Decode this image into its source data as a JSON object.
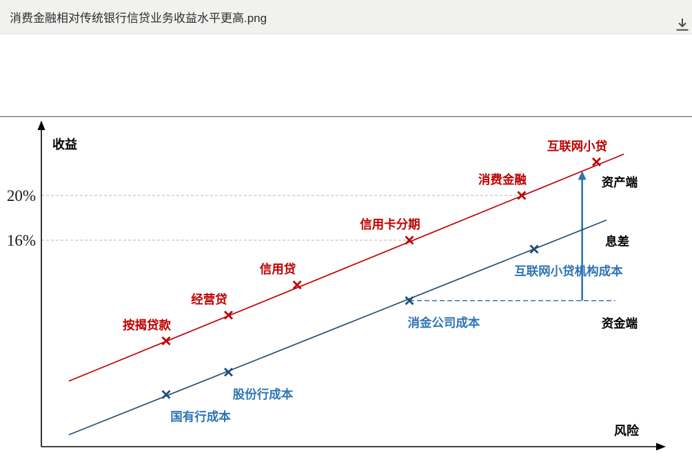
{
  "header": {
    "filename": "消费金融相对传统银行信贷业务收益水平更高.png",
    "icons": {
      "download": "download-icon"
    }
  },
  "chart_data": {
    "type": "scatter",
    "title": "消费金融相对传统银行信贷业务收益水平更高",
    "xlabel": "风险",
    "ylabel": "收益",
    "x_axis": {
      "qualitative": true,
      "range": [
        0,
        100
      ]
    },
    "y_axis": {
      "unit": "%",
      "ylim": [
        -2,
        25
      ],
      "ticks": [
        {
          "label": "20%",
          "value": 20,
          "gridline_to_x": 77
        },
        {
          "label": "16%",
          "value": 16,
          "gridline_to_x": 59
        }
      ]
    },
    "colors": {
      "axis": "#000000",
      "gridline": "#c2c2c2",
      "asset_line": "#c00000",
      "funding_line": "#1f4e79",
      "funding_label": "#2e74b5"
    },
    "series": [
      {
        "name": "资产端",
        "color": "#c00000",
        "label_color": "#c00000",
        "line": {
          "x": [
            4.4,
            93.4
          ],
          "y": [
            3.4,
            23.7
          ]
        },
        "points": [
          {
            "label": "按揭贷款",
            "x": 20,
            "y": 7.0
          },
          {
            "label": "经营贷",
            "x": 30,
            "y": 9.3
          },
          {
            "label": "信用贷",
            "x": 41,
            "y": 12.0
          },
          {
            "label": "信用卡分期",
            "x": 59,
            "y": 16.0
          },
          {
            "label": "消费金融",
            "x": 77,
            "y": 20.0
          },
          {
            "label": "互联网小贷",
            "x": 89,
            "y": 23.0
          }
        ]
      },
      {
        "name": "资金端",
        "color": "#1f4e79",
        "label_color": "#2e74b5",
        "line": {
          "x": [
            4.4,
            90.6
          ],
          "y": [
            -1.4,
            17.8
          ]
        },
        "points": [
          {
            "label": "国有行成本",
            "x": 20,
            "y": 2.2
          },
          {
            "label": "股份行成本",
            "x": 30,
            "y": 4.2
          },
          {
            "label": "消金公司成本",
            "x": 59,
            "y": 10.6
          },
          {
            "label": "互联网小贷机构成本",
            "x": 79,
            "y": 15.2
          }
        ]
      }
    ],
    "cost_dashed_line": {
      "y": 10.6,
      "x_from": 59,
      "x_to": 92,
      "color": "#2e74b5"
    },
    "spread_arrow": {
      "x": 86.7,
      "y_from": 10.6,
      "y_to": 22.2,
      "color": "#2e74b5"
    },
    "annotations": [
      {
        "label": "资产端",
        "x": 89.8,
        "y": 20.8
      },
      {
        "label": "息差",
        "x": 90.4,
        "y": 15.5
      },
      {
        "label": "资金端",
        "x": 89.8,
        "y": 8.2
      }
    ],
    "legend": "none",
    "grid": "partial-dashed"
  }
}
